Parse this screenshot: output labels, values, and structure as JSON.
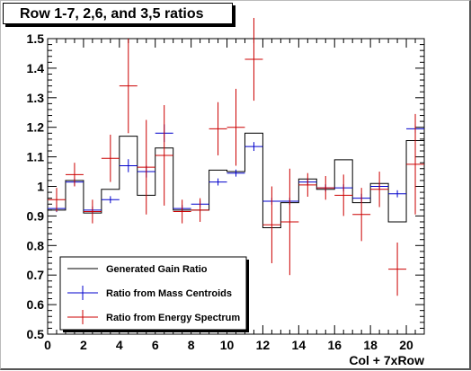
{
  "chart_data": {
    "type": "histogram",
    "title": "Row 1-7, 2,6, and 3,5 ratios",
    "xlabel": "Col + 7xRow",
    "ylabel": "",
    "xlim": [
      0,
      21
    ],
    "ylim": [
      0.5,
      1.5
    ],
    "x_ticks": [
      0,
      2,
      4,
      6,
      8,
      10,
      12,
      14,
      16,
      18,
      20
    ],
    "y_ticks": [
      0.5,
      0.6,
      0.7,
      0.8,
      0.9,
      1,
      1.1,
      1.2,
      1.3,
      1.4,
      1.5
    ],
    "y_tick_labels": [
      "0.5",
      "0.6",
      "0.7",
      "0.8",
      "0.9",
      "1",
      "1.1",
      "1.2",
      "1.3",
      "1.4",
      "1.5"
    ],
    "grid": false,
    "legend_position": "bottom-left",
    "series": [
      {
        "name": "Generated Gain Ratio",
        "style": "histogram",
        "color": "#000000",
        "bins": [
          {
            "x0": 0,
            "x1": 1,
            "y": 0.92
          },
          {
            "x0": 1,
            "x1": 2,
            "y": 1.02
          },
          {
            "x0": 2,
            "x1": 3,
            "y": 0.91
          },
          {
            "x0": 3,
            "x1": 4,
            "y": 0.99
          },
          {
            "x0": 4,
            "x1": 5,
            "y": 1.17
          },
          {
            "x0": 5,
            "x1": 6,
            "y": 0.97
          },
          {
            "x0": 6,
            "x1": 7,
            "y": 1.13
          },
          {
            "x0": 7,
            "x1": 8,
            "y": 0.92
          },
          {
            "x0": 8,
            "x1": 9,
            "y": 0.92
          },
          {
            "x0": 9,
            "x1": 10,
            "y": 1.055
          },
          {
            "x0": 10,
            "x1": 11,
            "y": 1.05
          },
          {
            "x0": 11,
            "x1": 12,
            "y": 1.18
          },
          {
            "x0": 12,
            "x1": 13,
            "y": 0.86
          },
          {
            "x0": 13,
            "x1": 14,
            "y": 0.945
          },
          {
            "x0": 14,
            "x1": 15,
            "y": 1.025
          },
          {
            "x0": 15,
            "x1": 16,
            "y": 0.99
          },
          {
            "x0": 16,
            "x1": 17,
            "y": 1.09
          },
          {
            "x0": 17,
            "x1": 18,
            "y": 0.945
          },
          {
            "x0": 18,
            "x1": 19,
            "y": 1.01
          },
          {
            "x0": 19,
            "x1": 20,
            "y": 0.88
          },
          {
            "x0": 20,
            "x1": 21,
            "y": 1.155
          }
        ]
      },
      {
        "name": "Ratio from Mass Centroids",
        "style": "markers-with-errors",
        "color": "#0000cc",
        "points": [
          {
            "x": 0.5,
            "y": 0.925,
            "err": 0.012
          },
          {
            "x": 1.5,
            "y": 1.015,
            "err": 0.012
          },
          {
            "x": 2.5,
            "y": 0.92,
            "err": 0.012
          },
          {
            "x": 3.5,
            "y": 0.955,
            "err": 0.012
          },
          {
            "x": 4.5,
            "y": 1.07,
            "err": 0.022
          },
          {
            "x": 5.5,
            "y": 1.05,
            "err": 0.02
          },
          {
            "x": 6.5,
            "y": 1.18,
            "err": 0.03
          },
          {
            "x": 7.5,
            "y": 0.925,
            "err": 0.012
          },
          {
            "x": 8.5,
            "y": 0.94,
            "err": 0.012
          },
          {
            "x": 9.5,
            "y": 1.015,
            "err": 0.012
          },
          {
            "x": 10.5,
            "y": 1.045,
            "err": 0.012
          },
          {
            "x": 11.5,
            "y": 1.135,
            "err": 0.015
          },
          {
            "x": 12.5,
            "y": 0.95,
            "err": 0.012
          },
          {
            "x": 13.5,
            "y": 0.95,
            "err": 0.012
          },
          {
            "x": 14.5,
            "y": 1.015,
            "err": 0.012
          },
          {
            "x": 15.5,
            "y": 0.995,
            "err": 0.012
          },
          {
            "x": 16.5,
            "y": 0.995,
            "err": 0.012
          },
          {
            "x": 17.5,
            "y": 0.96,
            "err": 0.015
          },
          {
            "x": 18.5,
            "y": 1.0,
            "err": 0.012
          },
          {
            "x": 19.5,
            "y": 0.975,
            "err": 0.012
          },
          {
            "x": 20.5,
            "y": 1.195,
            "err": 0.015
          }
        ]
      },
      {
        "name": "Ratio from Energy Spectrum",
        "style": "markers-with-errors",
        "color": "#cc0000",
        "points": [
          {
            "x": 0.5,
            "y": 0.955,
            "err": 0.04
          },
          {
            "x": 1.5,
            "y": 1.04,
            "err": 0.04
          },
          {
            "x": 2.5,
            "y": 0.915,
            "err": 0.04
          },
          {
            "x": 3.5,
            "y": 1.095,
            "err": 0.08
          },
          {
            "x": 4.5,
            "y": 1.34,
            "err": 0.16
          },
          {
            "x": 5.5,
            "y": 1.065,
            "err": 0.16
          },
          {
            "x": 6.5,
            "y": 1.105,
            "err": 0.17
          },
          {
            "x": 7.5,
            "y": 0.915,
            "err": 0.04
          },
          {
            "x": 8.5,
            "y": 0.92,
            "err": 0.04
          },
          {
            "x": 9.5,
            "y": 1.195,
            "err": 0.09
          },
          {
            "x": 10.5,
            "y": 1.2,
            "err": 0.13
          },
          {
            "x": 11.5,
            "y": 1.43,
            "err": 0.14
          },
          {
            "x": 12.5,
            "y": 0.87,
            "err": 0.13
          },
          {
            "x": 13.5,
            "y": 0.88,
            "err": 0.18
          },
          {
            "x": 14.5,
            "y": 1.005,
            "err": 0.04
          },
          {
            "x": 15.5,
            "y": 0.995,
            "err": 0.04
          },
          {
            "x": 16.5,
            "y": 0.97,
            "err": 0.07
          },
          {
            "x": 17.5,
            "y": 0.905,
            "err": 0.09
          },
          {
            "x": 18.5,
            "y": 0.99,
            "err": 0.06
          },
          {
            "x": 19.5,
            "y": 0.72,
            "err": 0.09
          },
          {
            "x": 20.5,
            "y": 1.075,
            "err": 0.17
          }
        ]
      }
    ],
    "legend": [
      {
        "label": "Generated Gain Ratio",
        "color": "#000000"
      },
      {
        "label": "Ratio from Mass Centroids",
        "color": "#0000cc"
      },
      {
        "label": "Ratio from Energy Spectrum",
        "color": "#cc0000"
      }
    ]
  }
}
